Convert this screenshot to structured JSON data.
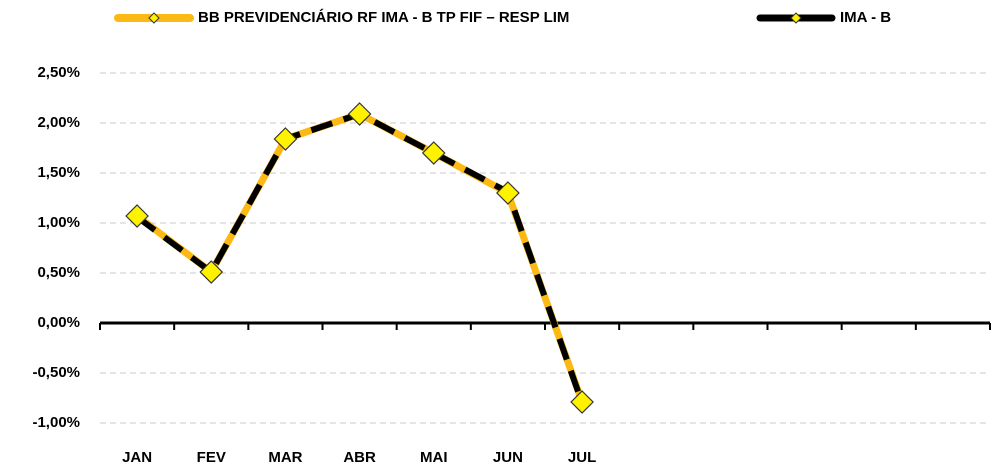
{
  "chart_data": {
    "type": "line",
    "categories": [
      "JAN",
      "FEV",
      "MAR",
      "ABR",
      "MAI",
      "JUN",
      "JUL",
      null,
      null,
      null,
      null,
      null
    ],
    "series": [
      {
        "name": "BB PREVIDENCIÁRIO RF IMA - B TP FIF – RESP LIM",
        "color": "#FDB913",
        "values": [
          1.07,
          0.51,
          1.84,
          2.09,
          1.7,
          1.3,
          -0.79,
          null,
          null,
          null,
          null,
          null
        ]
      },
      {
        "name": "IMA - B",
        "color": "#000000",
        "values": [
          1.06,
          0.51,
          1.84,
          2.09,
          1.7,
          1.31,
          -0.8,
          null,
          null,
          null,
          null,
          null
        ]
      }
    ],
    "ylim": [
      -1.0,
      2.5
    ],
    "yticks": [
      {
        "value": -1.0,
        "label": "-1,00%"
      },
      {
        "value": -0.5,
        "label": "-0,50%"
      },
      {
        "value": 0,
        "label": "0,00%"
      },
      {
        "value": 0.5,
        "label": "0,50%"
      },
      {
        "value": 1.0,
        "label": "1,00%"
      },
      {
        "value": 1.5,
        "label": "1,50%"
      },
      {
        "value": 2.0,
        "label": "2,00%"
      },
      {
        "value": 2.5,
        "label": "2,50%"
      }
    ],
    "grid": true,
    "legend": "top",
    "marker_color": "#FFF200"
  }
}
